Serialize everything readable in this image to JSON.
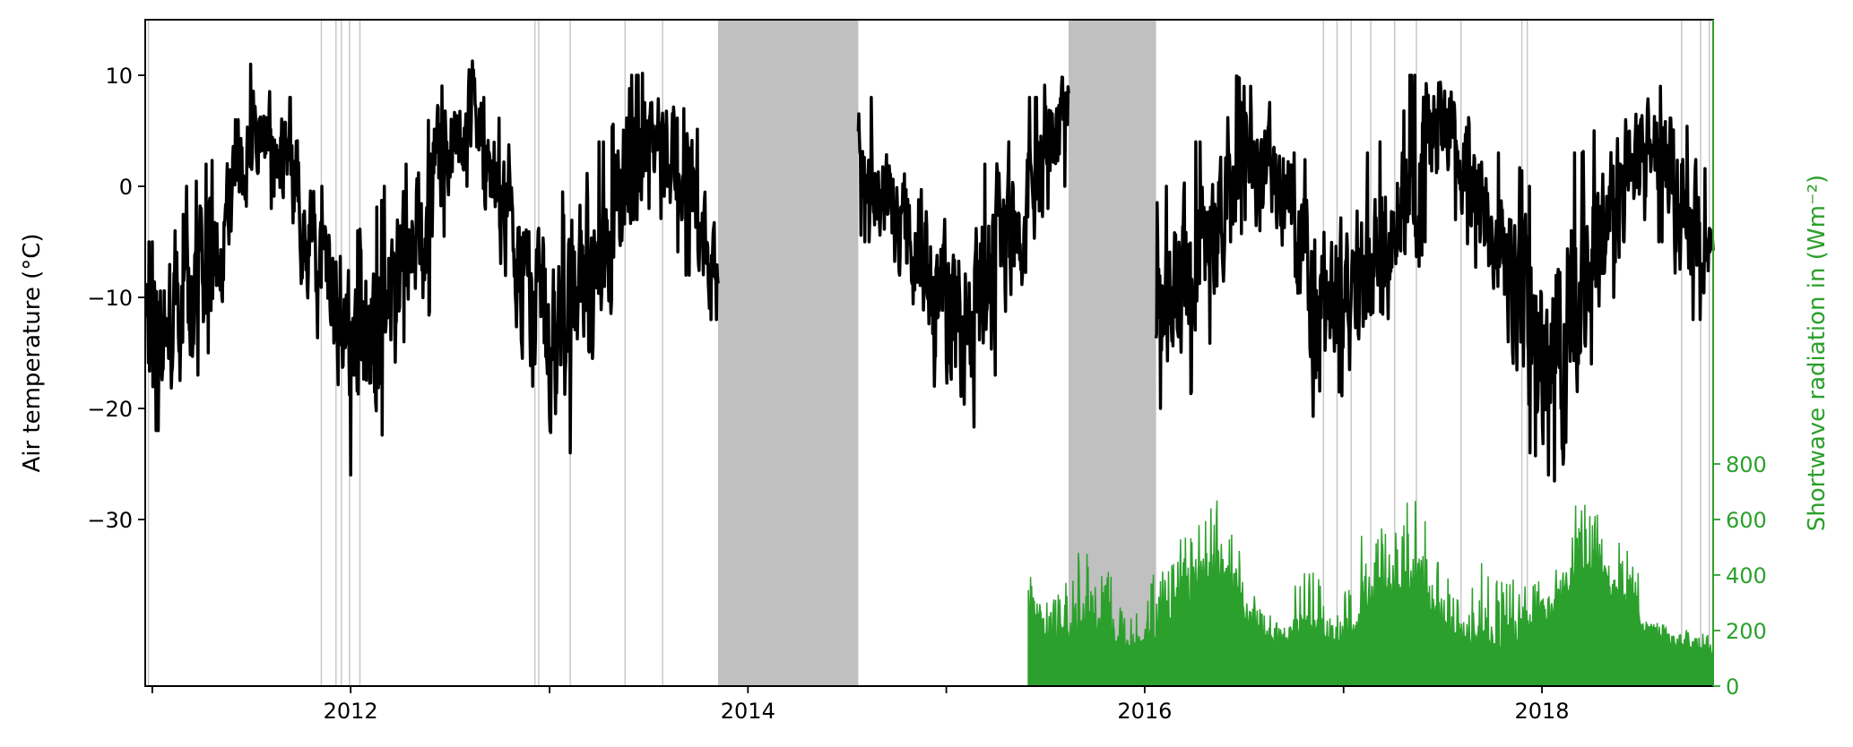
{
  "chart_data": {
    "type": "line",
    "title": "",
    "xlabel": "",
    "xlim": [
      "2010-12-19",
      "2018-11-12"
    ],
    "x_ticks": [
      {
        "date": "2011-01-01",
        "label": ""
      },
      {
        "date": "2012-01-01",
        "label": "2012"
      },
      {
        "date": "2013-01-01",
        "label": ""
      },
      {
        "date": "2014-01-01",
        "label": "2014"
      },
      {
        "date": "2015-01-01",
        "label": ""
      },
      {
        "date": "2016-01-01",
        "label": "2016"
      },
      {
        "date": "2017-01-01",
        "label": ""
      },
      {
        "date": "2018-01-01",
        "label": "2018"
      }
    ],
    "left_axis": {
      "label": "Air temperature (°C)",
      "ylim": [
        -45,
        15
      ],
      "ticks": [
        10,
        0,
        -10,
        -20,
        -30
      ],
      "tick_labels": [
        "10",
        "0",
        "−10",
        "−20",
        "−30"
      ],
      "color": "#000000"
    },
    "right_axis": {
      "label": "Shortwave radiation in (Wm⁻²)",
      "ylim": [
        0,
        2400
      ],
      "ticks": [
        0,
        200,
        400,
        600,
        800
      ],
      "tick_labels": [
        "0",
        "200",
        "400",
        "600",
        "800"
      ],
      "color": "#2ca02c"
    },
    "grid": false,
    "gap_shading_color": "#c0c0c0",
    "data_gaps": [
      {
        "start": "2013-11-07",
        "end": "2014-07-23"
      },
      {
        "start": "2015-08-14",
        "end": "2016-01-22"
      }
    ],
    "short_gaps": [
      "2010-12-25",
      "2011-11-08",
      "2011-12-05",
      "2011-12-15",
      "2011-12-30",
      "2012-01-18",
      "2012-12-05",
      "2012-12-12",
      "2013-02-08",
      "2013-05-20",
      "2013-07-28",
      "2016-11-25",
      "2016-12-20",
      "2017-01-15",
      "2017-02-20",
      "2017-04-05",
      "2017-05-15",
      "2017-08-05",
      "2017-11-25",
      "2017-12-05",
      "2018-09-15",
      "2018-10-20",
      "2018-11-05"
    ],
    "series": [
      {
        "type": "line",
        "axis": "left",
        "color": "#000000",
        "resolution": "daily (monthly min/max envelope given)",
        "segments": [
          {
            "start": "2010-12-19",
            "end": "2013-11-07",
            "first_month": "2010-12",
            "monthly_range": [
              [
                -22,
                -5
              ],
              [
                -22,
                -5
              ],
              [
                -22,
                -4
              ],
              [
                -18,
                0
              ],
              [
                -15,
                2
              ],
              [
                -12,
                4
              ],
              [
                -5,
                6
              ],
              [
                -3,
                11
              ],
              [
                -2,
                11
              ],
              [
                -5,
                8
              ],
              [
                -12,
                4
              ],
              [
                -15,
                0
              ],
              [
                -20,
                -2
              ],
              [
                -26,
                -4
              ],
              [
                -24,
                -2
              ],
              [
                -20,
                0
              ],
              [
                -14,
                2
              ],
              [
                -14,
                5
              ],
              [
                -5,
                9
              ],
              [
                -2,
                10
              ],
              [
                0,
                13
              ],
              [
                -4,
                8
              ],
              [
                -10,
                4
              ],
              [
                -18,
                0
              ],
              [
                -22,
                -2
              ],
              [
                -26,
                -2
              ],
              [
                -24,
                3
              ],
              [
                -20,
                5
              ],
              [
                -15,
                4
              ],
              [
                -10,
                8
              ],
              [
                -3,
                10
              ],
              [
                -2,
                11
              ],
              [
                -5,
                10
              ],
              [
                -8,
                7
              ],
              [
                -12,
                3
              ],
              [
                -12,
                -5
              ]
            ]
          },
          {
            "start": "2014-07-23",
            "end": "2015-08-14",
            "first_month": "2014-07",
            "monthly_range": [
              [
                -4,
                8
              ],
              [
                -5,
                8
              ],
              [
                -8,
                6
              ],
              [
                -12,
                4
              ],
              [
                -16,
                3
              ],
              [
                -18,
                0
              ],
              [
                -22,
                0
              ],
              [
                -22,
                -2
              ],
              [
                -20,
                2
              ],
              [
                -17,
                4
              ],
              [
                -12,
                4
              ],
              [
                -8,
                8
              ],
              [
                -2,
                12
              ],
              [
                0,
                12
              ]
            ]
          },
          {
            "start": "2016-01-22",
            "end": "2018-11-12",
            "first_month": "2016-01",
            "monthly_range": [
              [
                -20,
                -2
              ],
              [
                -20,
                0
              ],
              [
                -20,
                2
              ],
              [
                -16,
                4
              ],
              [
                -12,
                6
              ],
              [
                -5,
                10
              ],
              [
                -3,
                9
              ],
              [
                -5,
                9
              ],
              [
                -8,
                6
              ],
              [
                -14,
                3
              ],
              [
                -24,
                0
              ],
              [
                -18,
                0
              ],
              [
                -20,
                2
              ],
              [
                -18,
                3
              ],
              [
                -16,
                4
              ],
              [
                -10,
                6
              ],
              [
                -8,
                10
              ],
              [
                -2,
                12
              ],
              [
                -2,
                11
              ],
              [
                -5,
                10
              ],
              [
                -10,
                7
              ],
              [
                -14,
                3
              ],
              [
                -20,
                2
              ],
              [
                -24,
                0
              ],
              [
                -26,
                -2
              ],
              [
                -28,
                2
              ],
              [
                -22,
                3
              ],
              [
                -16,
                5
              ],
              [
                -10,
                7
              ],
              [
                -5,
                9
              ],
              [
                -3,
                10
              ],
              [
                -5,
                9
              ],
              [
                -10,
                6
              ],
              [
                -12,
                4
              ],
              [
                -12,
                -2
              ]
            ]
          }
        ]
      },
      {
        "type": "area",
        "axis": "right",
        "color": "#2ca02c",
        "resolution": "daily (monthly baseline/peak given)",
        "segments": [
          {
            "start": "2015-06-01",
            "end": "2018-11-12",
            "first_month": "2015-06",
            "monthly_base_peak": [
              [
                250,
                370
              ],
              [
                170,
                300
              ],
              [
                170,
                400
              ],
              [
                220,
                510
              ],
              [
                190,
                480
              ],
              [
                150,
                300
              ],
              [
                140,
                250
              ],
              [
                150,
                420
              ],
              [
                250,
                510
              ],
              [
                300,
                560
              ],
              [
                360,
                640
              ],
              [
                380,
                770
              ],
              [
                330,
                640
              ],
              [
                230,
                330
              ],
              [
                170,
                270
              ],
              [
                150,
                230
              ],
              [
                210,
                420
              ],
              [
                180,
                430
              ],
              [
                150,
                260
              ],
              [
                170,
                380
              ],
              [
                280,
                620
              ],
              [
                330,
                580
              ],
              [
                330,
                620
              ],
              [
                360,
                670
              ],
              [
                250,
                520
              ],
              [
                180,
                450
              ],
              [
                160,
                260
              ],
              [
                150,
                500
              ],
              [
                130,
                400
              ],
              [
                160,
                370
              ],
              [
                200,
                400
              ],
              [
                230,
                380
              ],
              [
                330,
                500
              ],
              [
                380,
                620
              ],
              [
                400,
                700
              ],
              [
                330,
                600
              ],
              [
                260,
                480
              ],
              [
                200,
                250
              ],
              [
                170,
                220
              ],
              [
                150,
                200
              ],
              [
                130,
                180
              ],
              [
                120,
                190
              ]
            ]
          }
        ]
      }
    ]
  }
}
